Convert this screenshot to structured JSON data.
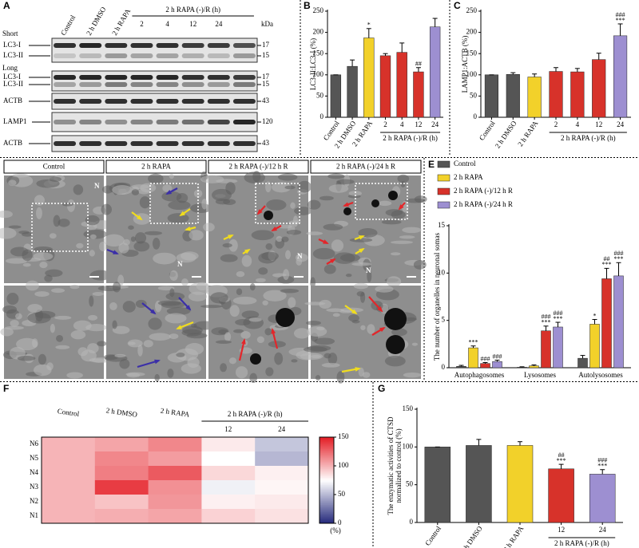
{
  "blot": {
    "panel": "A",
    "columns": [
      "Control",
      "2 h DMSO",
      "2 h RAPA"
    ],
    "group_label": "2 h RAPA (-)/R (h)",
    "group_columns": [
      "2",
      "4",
      "12",
      "24"
    ],
    "unit": "kDa",
    "exposure_labels": [
      "Short",
      "Long"
    ],
    "rows": [
      {
        "label": "LC3-I",
        "kda": 17
      },
      {
        "label": "LC3-II",
        "kda": 15
      },
      {
        "label": "LC3-I",
        "kda": 17
      },
      {
        "label": "LC3-II",
        "kda": 15
      },
      {
        "label": "ACTB",
        "kda": 43
      },
      {
        "label": "LAMP1",
        "kda": 120
      },
      {
        "label": "ACTB",
        "kda": 43
      }
    ]
  },
  "micrographs": {
    "panel": "D",
    "headers": [
      "Control",
      "2 h RAPA",
      "2 h RAPA (-)/12 h R",
      "2 h RAPA (-)/24 h R"
    ],
    "nucleus_label": "N"
  },
  "chart_data": [
    {
      "type": "bar",
      "panel": "B",
      "y_label": "LC3-II:LC3-I (%)",
      "categories": [
        "Control",
        "2 h DMSO",
        "2 h RAPA",
        "2",
        "4",
        "12",
        "24"
      ],
      "values": [
        100,
        120,
        187,
        145,
        153,
        107,
        213
      ],
      "errors": [
        0,
        15,
        22,
        5,
        22,
        10,
        20
      ],
      "colors": [
        "#555555",
        "#555555",
        "#f2d12a",
        "#d7322a",
        "#d7322a",
        "#d7322a",
        "#9d8fd1"
      ],
      "ylim": [
        0,
        250
      ],
      "yticks": [
        0,
        50,
        100,
        150,
        200,
        250
      ],
      "group_label": "2 h RAPA (-)/R (h)",
      "annotations": [
        {
          "category": "2 h RAPA",
          "text": [
            "*"
          ]
        },
        {
          "category": "12",
          "text": [
            "##"
          ]
        }
      ]
    },
    {
      "type": "bar",
      "panel": "C",
      "y_label": "LAMP1:ACTB (%)",
      "categories": [
        "Control",
        "2 h DMSO",
        "2 h RAPA",
        "2",
        "4",
        "12",
        "24"
      ],
      "values": [
        100,
        101,
        95,
        108,
        107,
        136,
        192
      ],
      "errors": [
        0,
        4,
        7,
        9,
        8,
        15,
        28
      ],
      "colors": [
        "#555555",
        "#555555",
        "#f2d12a",
        "#d7322a",
        "#d7322a",
        "#d7322a",
        "#9d8fd1"
      ],
      "ylim": [
        0,
        250
      ],
      "yticks": [
        0,
        50,
        100,
        150,
        200,
        250
      ],
      "group_label": "2 h RAPA (-)/R (h)",
      "annotations": [
        {
          "category": "24",
          "text": [
            "###",
            "***"
          ]
        }
      ]
    },
    {
      "type": "grouped_bar",
      "panel": "E",
      "y_label": "The number of organelles in neuronal somas",
      "categories": [
        "Autophagosomes",
        "Lysosomes",
        "Autolysosomes"
      ],
      "series": [
        {
          "name": "Control",
          "color": "#555555",
          "values": [
            0.15,
            0.05,
            1.0
          ],
          "errors": [
            0.1,
            0.05,
            0.3
          ]
        },
        {
          "name": "2 h RAPA",
          "color": "#f2d12a",
          "values": [
            2.1,
            0.2,
            4.6
          ],
          "errors": [
            0.2,
            0.1,
            0.5
          ]
        },
        {
          "name": "2 h RAPA (-)/12 h R",
          "color": "#d7322a",
          "values": [
            0.45,
            3.9,
            9.4
          ],
          "errors": [
            0.1,
            0.5,
            1.1
          ]
        },
        {
          "name": "2 h RAPA (-)/24 h R",
          "color": "#9d8fd1",
          "values": [
            0.65,
            4.3,
            9.7
          ],
          "errors": [
            0.15,
            0.5,
            1.4
          ]
        }
      ],
      "ylim": [
        0,
        15
      ],
      "yticks": [
        0,
        5,
        10,
        15
      ],
      "annotations": [
        {
          "series": "2 h RAPA",
          "category": "Autophagosomes",
          "text": [
            "***"
          ]
        },
        {
          "series": "2 h RAPA (-)/12 h R",
          "category": "Autophagosomes",
          "text": [
            "###"
          ]
        },
        {
          "series": "2 h RAPA (-)/24 h R",
          "category": "Autophagosomes",
          "text": [
            "###"
          ]
        },
        {
          "series": "2 h RAPA (-)/12 h R",
          "category": "Lysosomes",
          "text": [
            "###",
            "***"
          ]
        },
        {
          "series": "2 h RAPA (-)/24 h R",
          "category": "Lysosomes",
          "text": [
            "###",
            "***"
          ]
        },
        {
          "series": "2 h RAPA",
          "category": "Autolysosomes",
          "text": [
            "*"
          ]
        },
        {
          "series": "2 h RAPA (-)/12 h R",
          "category": "Autolysosomes",
          "text": [
            "##",
            "***"
          ]
        },
        {
          "series": "2 h RAPA (-)/24 h R",
          "category": "Autolysosomes",
          "text": [
            "###",
            "***"
          ]
        }
      ]
    },
    {
      "type": "heatmap",
      "panel": "F",
      "columns": [
        "Control",
        "2 h DMSO",
        "2 h RAPA",
        "12",
        "24"
      ],
      "group_label": "2 h RAPA (-)/R (h)",
      "rows": [
        "N6",
        "N5",
        "N4",
        "N3",
        "N2",
        "N1"
      ],
      "values": [
        [
          100,
          105,
          115,
          82,
          55
        ],
        [
          100,
          115,
          108,
          75,
          50
        ],
        [
          100,
          118,
          130,
          88,
          80
        ],
        [
          100,
          140,
          112,
          70,
          78
        ],
        [
          100,
          95,
          110,
          80,
          82
        ],
        [
          100,
          102,
          105,
          90,
          85
        ]
      ],
      "clim": [
        0,
        150
      ],
      "colorbar_ticks": [
        0,
        50,
        100,
        150
      ],
      "colorscale": [
        "#23287a",
        "#ffffff",
        "#e41e26"
      ],
      "colorbar_label": "(%)"
    },
    {
      "type": "bar",
      "panel": "G",
      "y_label": [
        "The enzymatic activities of CTSD",
        "normalized to control (%)"
      ],
      "categories": [
        "Control",
        "2 h DMSO",
        "2 h RAPA",
        "12",
        "24"
      ],
      "values": [
        100,
        102,
        102,
        71,
        64
      ],
      "errors": [
        0,
        8,
        5,
        6,
        6
      ],
      "colors": [
        "#555555",
        "#555555",
        "#f2d12a",
        "#d7322a",
        "#9d8fd1"
      ],
      "ylim": [
        0,
        150
      ],
      "yticks": [
        0,
        50,
        100,
        150
      ],
      "group_label": "2 h RAPA (-)/R (h)",
      "annotations": [
        {
          "category": "12",
          "text": [
            "##",
            "***"
          ]
        },
        {
          "category": "24",
          "text": [
            "###",
            "***"
          ]
        }
      ]
    }
  ]
}
